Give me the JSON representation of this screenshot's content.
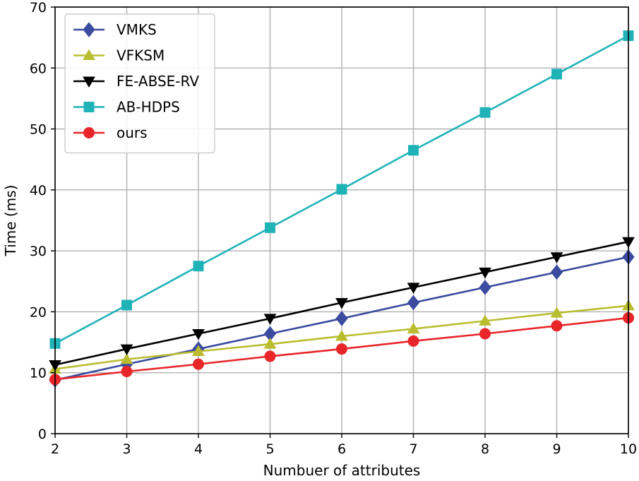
{
  "chart_data": {
    "type": "line",
    "title": "",
    "xlabel": "Numbuer of attributes",
    "ylabel": "Time (ms)",
    "x": [
      2,
      3,
      4,
      5,
      6,
      7,
      8,
      9,
      10
    ],
    "xlim": [
      2,
      10
    ],
    "ylim": [
      0,
      70
    ],
    "xticks": [
      2,
      3,
      4,
      5,
      6,
      7,
      8,
      9,
      10
    ],
    "yticks": [
      0,
      10,
      20,
      30,
      40,
      50,
      60,
      70
    ],
    "grid": true,
    "legend_position": "top-left",
    "series": [
      {
        "name": "VMKS",
        "color": "#3a4ba0",
        "marker": "diamond",
        "values": [
          8.8,
          11.4,
          13.9,
          16.4,
          18.9,
          21.5,
          24.0,
          26.5,
          29.0
        ]
      },
      {
        "name": "VFKSM",
        "color": "#b9bd2e",
        "marker": "triangle-up",
        "values": [
          10.6,
          12.2,
          13.5,
          14.7,
          16.0,
          17.2,
          18.5,
          19.8,
          21.0
        ]
      },
      {
        "name": "FE-ABSE-RV",
        "color": "#000000",
        "marker": "triangle-down",
        "values": [
          11.3,
          13.9,
          16.4,
          18.9,
          21.5,
          24.0,
          26.5,
          29.0,
          31.5
        ]
      },
      {
        "name": "AB-HDPS",
        "color": "#1fb3b8",
        "marker": "square",
        "values": [
          14.8,
          21.1,
          27.5,
          33.8,
          40.1,
          46.5,
          52.7,
          59.0,
          65.3
        ]
      },
      {
        "name": "ours",
        "color": "#e8262a",
        "marker": "circle",
        "values": [
          8.9,
          10.2,
          11.4,
          12.7,
          13.9,
          15.2,
          16.4,
          17.7,
          19.0
        ]
      }
    ]
  }
}
